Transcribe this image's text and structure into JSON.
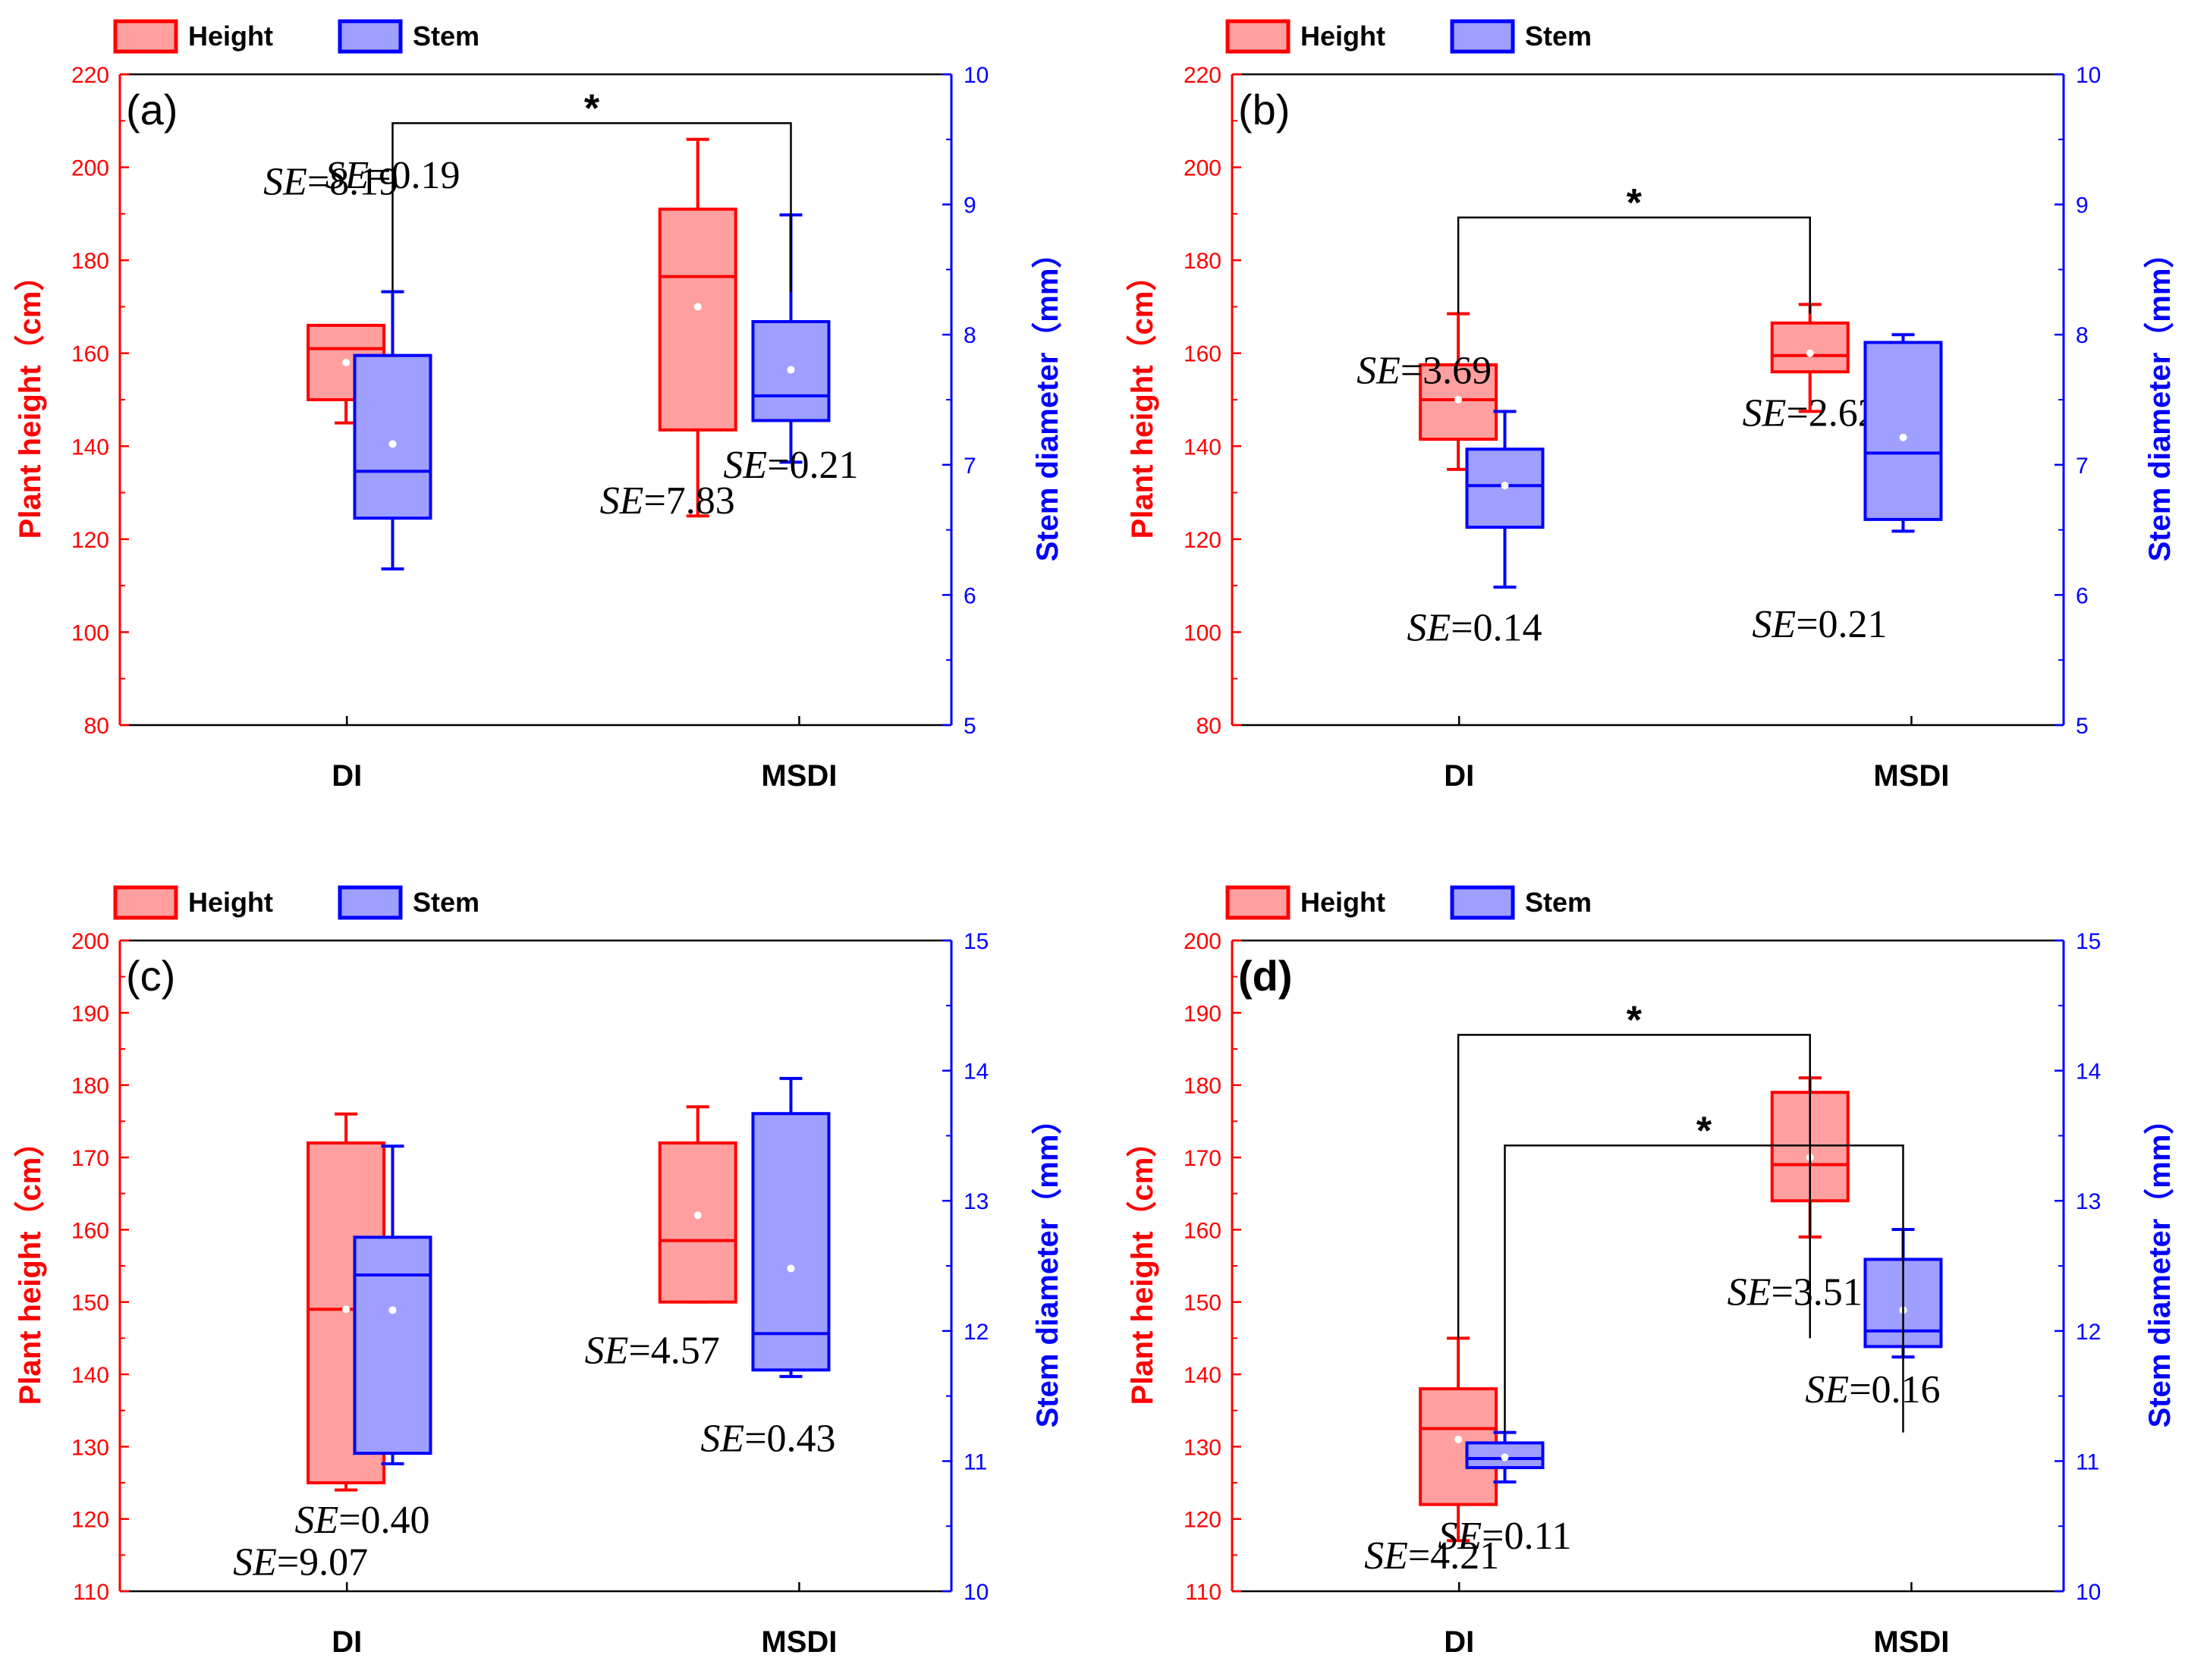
{
  "legend": {
    "height_label": "Height",
    "stem_label": "Stem"
  },
  "colors": {
    "height_edge": "#ff0000",
    "height_fill": "#ff9f9f",
    "stem_edge": "#0000ff",
    "stem_fill": "#9f9fff",
    "axis_left": "#ff0000",
    "axis_right": "#0000ff"
  },
  "axis_titles": {
    "left": "Plant height（cm）",
    "right": "Stem diameter（mm）"
  },
  "chart_data": [
    {
      "type": "box",
      "panel_label": "(a)",
      "label_bold": false,
      "categories": [
        "DI",
        "MSDI"
      ],
      "left_axis": {
        "title": "Plant height（cm）",
        "ylim": [
          80,
          220
        ],
        "ticks": [
          80,
          100,
          120,
          140,
          160,
          180,
          200,
          220
        ]
      },
      "right_axis": {
        "title": "Stem diameter（mm）",
        "ylim": [
          5,
          10
        ],
        "ticks": [
          5,
          6,
          7,
          8,
          9,
          10
        ]
      },
      "series": [
        {
          "name": "Height",
          "axis": "left",
          "boxes": [
            {
              "category": "DI",
              "min": 145,
              "q1": 150,
              "median": 161,
              "q3": 166,
              "max": 166,
              "mean": 158,
              "se": "8.19"
            },
            {
              "category": "MSDI",
              "min": 125,
              "q1": 143.5,
              "median": 176.5,
              "q3": 191,
              "max": 206,
              "mean": 170,
              "se": "7.83"
            }
          ]
        },
        {
          "name": "Stem",
          "axis": "right",
          "boxes": [
            {
              "category": "DI",
              "min": 6.2,
              "q1": 6.59,
              "median": 6.95,
              "q3": 7.84,
              "max": 8.33,
              "mean": 7.16,
              "se": "0.19"
            },
            {
              "category": "MSDI",
              "min": 7.02,
              "q1": 7.34,
              "median": 7.53,
              "q3": 8.1,
              "max": 8.92,
              "mean": 7.73,
              "se": "0.21"
            }
          ]
        }
      ],
      "significance": [
        {
          "from": "Stem DI",
          "to": "Stem MSDI",
          "label": "*"
        }
      ]
    },
    {
      "type": "box",
      "panel_label": "(b)",
      "label_bold": false,
      "categories": [
        "DI",
        "MSDI"
      ],
      "left_axis": {
        "title": "Plant height（cm）",
        "ylim": [
          80,
          220
        ],
        "ticks": [
          80,
          100,
          120,
          140,
          160,
          180,
          200,
          220
        ]
      },
      "right_axis": {
        "title": "Stem diameter（mm）",
        "ylim": [
          5,
          10
        ],
        "ticks": [
          5,
          6,
          7,
          8,
          9,
          10
        ]
      },
      "series": [
        {
          "name": "Height",
          "axis": "left",
          "boxes": [
            {
              "category": "DI",
              "min": 135,
              "q1": 141.5,
              "median": 150,
              "q3": 157.5,
              "max": 168.5,
              "mean": 150,
              "se": "3.69"
            },
            {
              "category": "MSDI",
              "min": 147.5,
              "q1": 156,
              "median": 159.5,
              "q3": 166.5,
              "max": 170.5,
              "mean": 160,
              "se": "2.62"
            }
          ]
        },
        {
          "name": "Stem",
          "axis": "right",
          "boxes": [
            {
              "category": "DI",
              "min": 6.06,
              "q1": 6.52,
              "median": 6.84,
              "q3": 7.12,
              "max": 7.41,
              "mean": 6.84,
              "se": "0.14"
            },
            {
              "category": "MSDI",
              "min": 6.49,
              "q1": 6.58,
              "median": 7.09,
              "q3": 7.94,
              "max": 8.0,
              "mean": 7.21,
              "se": "0.21"
            }
          ]
        }
      ],
      "significance": [
        {
          "from": "Height DI",
          "to": "Height MSDI",
          "label": "*"
        }
      ]
    },
    {
      "type": "box",
      "panel_label": "(c)",
      "label_bold": false,
      "categories": [
        "DI",
        "MSDI"
      ],
      "left_axis": {
        "title": "Plant height（cm）",
        "ylim": [
          110,
          200
        ],
        "ticks": [
          110,
          120,
          130,
          140,
          150,
          160,
          170,
          180,
          190,
          200
        ]
      },
      "right_axis": {
        "title": "Stem diameter（mm）",
        "ylim": [
          10,
          15
        ],
        "ticks": [
          10,
          11,
          12,
          13,
          14,
          15
        ]
      },
      "series": [
        {
          "name": "Height",
          "axis": "left",
          "boxes": [
            {
              "category": "DI",
              "min": 124,
              "q1": 125,
              "median": 149,
              "q3": 172,
              "max": 176,
              "mean": 149,
              "se": "9.07"
            },
            {
              "category": "MSDI",
              "min": 150,
              "q1": 150,
              "median": 158.5,
              "q3": 172,
              "max": 177,
              "mean": 162,
              "se": "4.57"
            }
          ]
        },
        {
          "name": "Stem",
          "axis": "right",
          "boxes": [
            {
              "category": "DI",
              "min": 10.98,
              "q1": 11.06,
              "median": 12.43,
              "q3": 12.72,
              "max": 13.42,
              "mean": 12.16,
              "se": "0.40"
            },
            {
              "category": "MSDI",
              "min": 11.65,
              "q1": 11.7,
              "median": 11.98,
              "q3": 13.67,
              "max": 13.94,
              "mean": 12.48,
              "se": "0.43"
            }
          ]
        }
      ],
      "significance": []
    },
    {
      "type": "box",
      "panel_label": "(d)",
      "label_bold": true,
      "categories": [
        "DI",
        "MSDI"
      ],
      "left_axis": {
        "title": "Plant height（cm）",
        "ylim": [
          110,
          200
        ],
        "ticks": [
          110,
          120,
          130,
          140,
          150,
          160,
          170,
          180,
          190,
          200
        ]
      },
      "right_axis": {
        "title": "Stem diameter（mm）",
        "ylim": [
          10,
          15
        ],
        "ticks": [
          10,
          11,
          12,
          13,
          14,
          15
        ]
      },
      "series": [
        {
          "name": "Height",
          "axis": "left",
          "boxes": [
            {
              "category": "DI",
              "min": 117,
              "q1": 122,
              "median": 132.5,
              "q3": 138,
              "max": 145,
              "mean": 131,
              "se": "4.21"
            },
            {
              "category": "MSDI",
              "min": 159,
              "q1": 164,
              "median": 169,
              "q3": 179,
              "max": 181,
              "mean": 170,
              "se": "3.51"
            }
          ]
        },
        {
          "name": "Stem",
          "axis": "right",
          "boxes": [
            {
              "category": "DI",
              "min": 10.84,
              "q1": 10.95,
              "median": 11.02,
              "q3": 11.14,
              "max": 11.22,
              "mean": 11.03,
              "se": "0.11"
            },
            {
              "category": "MSDI",
              "min": 11.8,
              "q1": 11.88,
              "median": 12.0,
              "q3": 12.55,
              "max": 12.78,
              "mean": 12.16,
              "se": "0.16"
            }
          ]
        }
      ],
      "significance": [
        {
          "from": "Height DI",
          "to": "Height MSDI",
          "label": "*"
        },
        {
          "from": "Stem DI",
          "to": "Stem MSDI",
          "label": "*"
        }
      ]
    }
  ]
}
